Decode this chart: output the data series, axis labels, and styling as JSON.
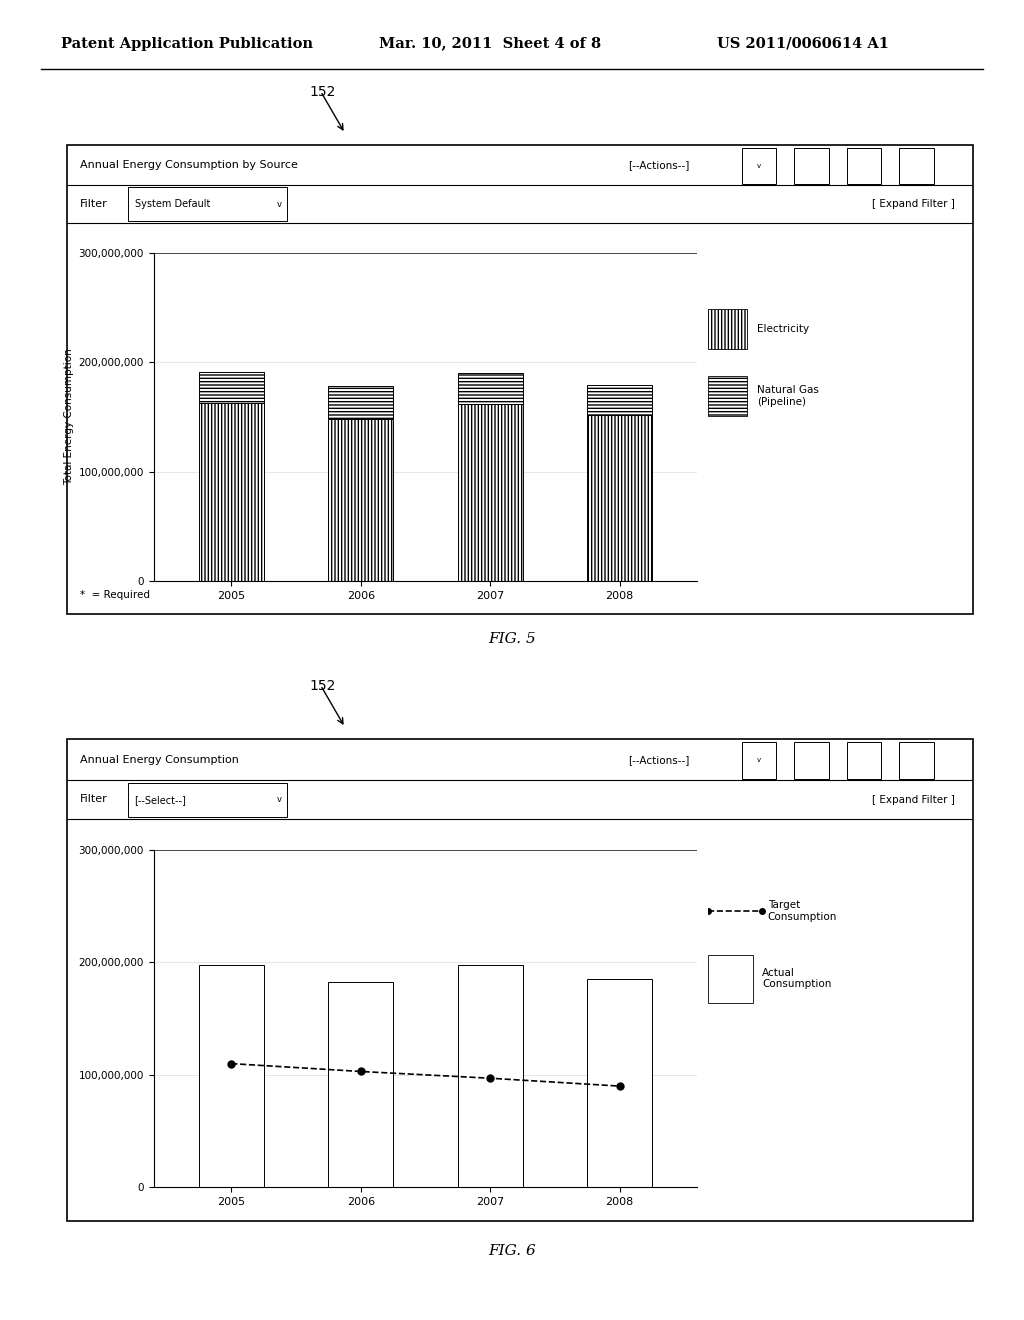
{
  "page_header_left": "Patent Application Publication",
  "page_header_mid": "Mar. 10, 2011  Sheet 4 of 8",
  "page_header_right": "US 2011/0060614 A1",
  "fig5_label": "152",
  "fig5_title_bar": "Annual Energy Consumption by Source",
  "fig5_actions": "[--Actions--]",
  "fig5_filter_label": "Filter",
  "fig5_filter_value": "System Default",
  "fig5_expand": "[ Expand Filter ]",
  "fig5_ylabel": "Total Energy Consumption",
  "fig5_years": [
    2005,
    2006,
    2007,
    2008
  ],
  "fig5_electricity": [
    163000000,
    148000000,
    162000000,
    152000000
  ],
  "fig5_natural_gas": [
    28000000,
    30000000,
    28000000,
    27000000
  ],
  "fig5_yticks": [
    0,
    100000000,
    200000000,
    300000000
  ],
  "fig5_legend1": "Electricity",
  "fig5_legend2": "Natural Gas\n(Pipeline)",
  "fig5_note": "*  = Required",
  "fig5_caption": "FIG. 5",
  "fig6_label": "152",
  "fig6_title_bar": "Annual Energy Consumption",
  "fig6_actions": "[--Actions--]",
  "fig6_filter_label": "Filter",
  "fig6_filter_value": "[--Select--]",
  "fig6_expand": "[ Expand Filter ]",
  "fig6_years": [
    2005,
    2006,
    2007,
    2008
  ],
  "fig6_actual": [
    198000000,
    183000000,
    198000000,
    185000000
  ],
  "fig6_target": [
    110000000,
    103000000,
    97000000,
    90000000
  ],
  "fig6_yticks": [
    0,
    100000000,
    200000000,
    300000000
  ],
  "fig6_legend1": "Target\nConsumption",
  "fig6_legend2": "Actual\nConsumption",
  "fig6_caption": "FIG. 6",
  "bg_color": "#ffffff"
}
